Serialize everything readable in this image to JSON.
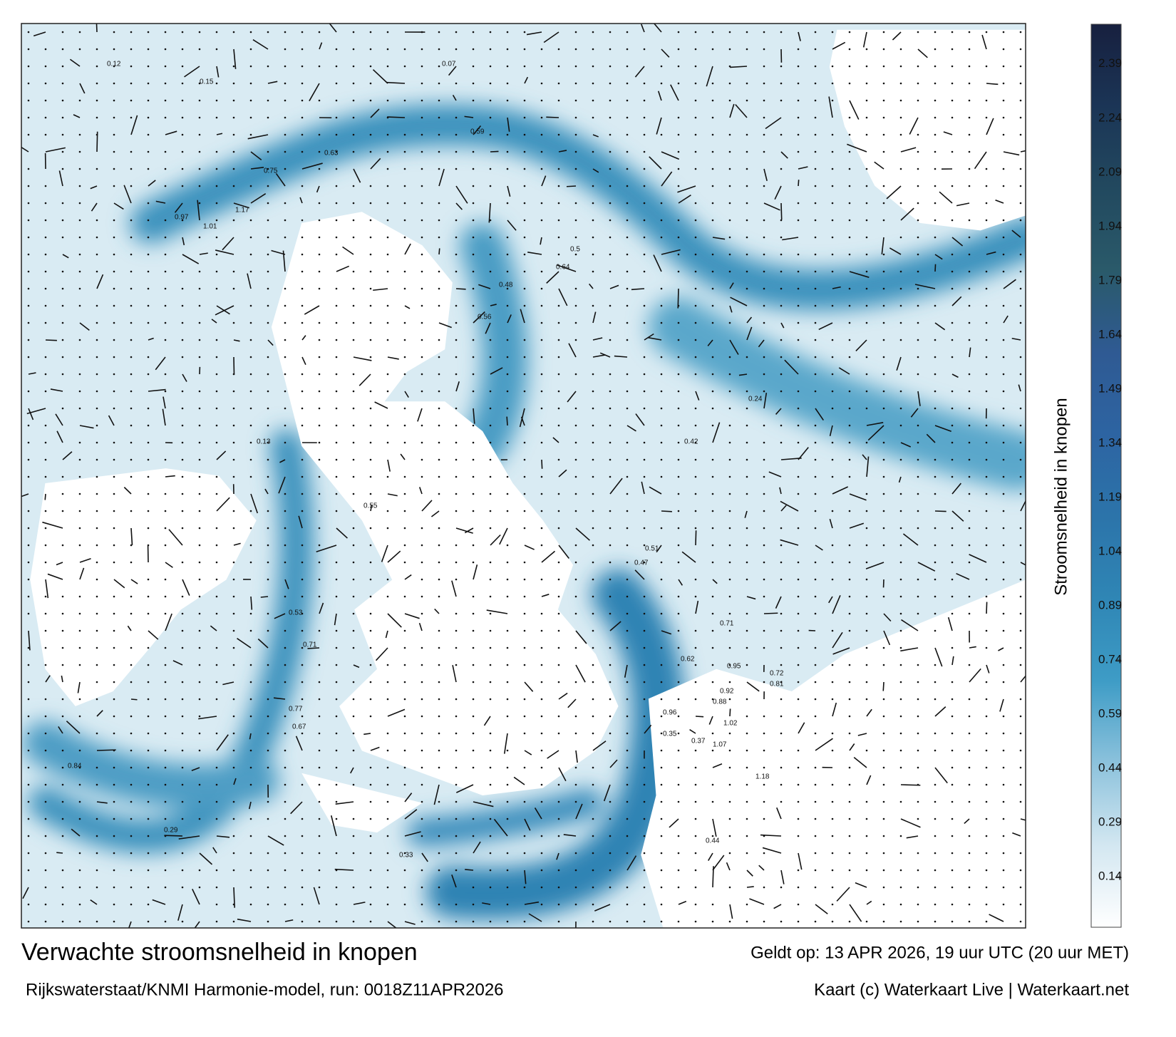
{
  "title": "Verwachte stroomsnelheid in knopen",
  "subtitle": "Rijkswaterstaat/KNMI Harmonie-model, run: 0018Z11APR2026",
  "valid_time": "Geldt op: 13 APR 2026, 19 uur UTC (20 uur MET)",
  "credit": "Kaart (c) Waterkaart Live | Waterkaart.net",
  "colorbar": {
    "label": "Stroomsnelheid in knopen",
    "lim": [
      0,
      2.5
    ],
    "ticks": [
      0.14,
      0.29,
      0.44,
      0.59,
      0.74,
      0.89,
      1.04,
      1.19,
      1.34,
      1.49,
      1.64,
      1.79,
      1.94,
      2.09,
      2.24,
      2.39
    ],
    "colors": [
      "#ffffff",
      "#d3e7f1",
      "#8cc2dc",
      "#3e9cc6",
      "#2f86b5",
      "#2c74aa",
      "#2d64a2",
      "#2f5a93",
      "#2a5a6a",
      "#22495f",
      "#1b3556",
      "#17203f"
    ]
  },
  "map_labels": [
    0.97,
    1.01,
    1.17,
    0.75,
    0.63,
    0.59,
    0.56,
    0.48,
    0.64,
    0.5,
    0.55,
    0.47,
    0.51,
    0.53,
    0.71,
    0.77,
    0.67,
    0.84,
    0.71,
    0.62,
    0.96,
    1.02,
    1.07,
    0.88,
    0.95,
    1.18,
    0.92,
    0.81,
    0.72,
    0.35,
    0.42,
    0.37,
    0.24,
    0.13,
    0.07,
    0.15,
    0.12,
    0.29,
    0.33,
    0.44
  ]
}
